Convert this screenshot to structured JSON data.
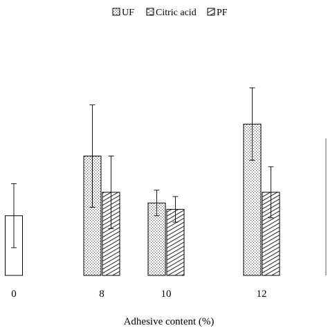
{
  "chart_data": {
    "type": "bar",
    "categories": [
      "0",
      "8",
      "10",
      "12"
    ],
    "xlabel": "Adhesive content (%)",
    "ylabel": "",
    "title": "",
    "ylim": [
      0,
      100
    ],
    "grid": false,
    "legend_position": "top-right",
    "series": [
      {
        "name": "",
        "pattern": "none",
        "values": [
          28,
          null,
          null,
          null
        ],
        "errors": [
          15,
          null,
          null,
          null
        ]
      },
      {
        "name": "UF",
        "pattern": "dots",
        "values": [
          null,
          56,
          34,
          71
        ],
        "errors": [
          null,
          24,
          6,
          17
        ]
      },
      {
        "name": "Citric acid",
        "pattern": "dashes",
        "values": [
          null,
          null,
          null,
          null
        ],
        "errors": [
          null,
          null,
          null,
          null
        ]
      },
      {
        "name": "PF",
        "pattern": "hatch",
        "values": [
          null,
          39,
          31,
          39
        ],
        "errors": [
          null,
          17,
          6,
          12
        ]
      }
    ]
  }
}
